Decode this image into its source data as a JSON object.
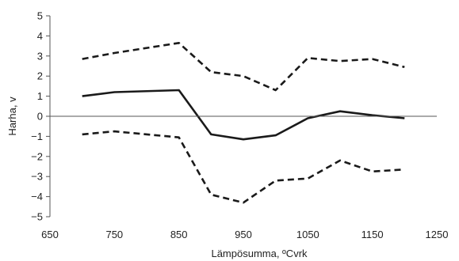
{
  "chart_data": {
    "type": "line",
    "xlabel": "Lämpösumma, ºCvrk",
    "ylabel": "Harha, v",
    "xlim": [
      650,
      1250
    ],
    "ylim": [
      -5,
      5
    ],
    "xticks": [
      "650",
      "750",
      "850",
      "950",
      "1050",
      "1150",
      "1250"
    ],
    "yticks": [
      "5",
      "4",
      "3",
      "2",
      "1",
      "0",
      "−1",
      "−2",
      "−3",
      "−4",
      "−5"
    ],
    "grid": false,
    "zero_line": true,
    "x": [
      700,
      750,
      850,
      900,
      950,
      1000,
      1050,
      1100,
      1150,
      1200
    ],
    "series": [
      {
        "style": "dashed",
        "color": "#1a1a1a",
        "values": [
          2.85,
          3.15,
          3.65,
          2.2,
          2.0,
          1.3,
          2.9,
          2.75,
          2.85,
          2.45
        ]
      },
      {
        "style": "solid",
        "color": "#1a1a1a",
        "values": [
          1.0,
          1.2,
          1.3,
          -0.9,
          -1.15,
          -0.95,
          -0.1,
          0.25,
          0.05,
          -0.1
        ]
      },
      {
        "style": "dashed",
        "color": "#1a1a1a",
        "values": [
          -0.9,
          -0.75,
          -1.05,
          -3.9,
          -4.3,
          -3.2,
          -3.1,
          -2.2,
          -2.75,
          -2.65
        ]
      }
    ]
  }
}
